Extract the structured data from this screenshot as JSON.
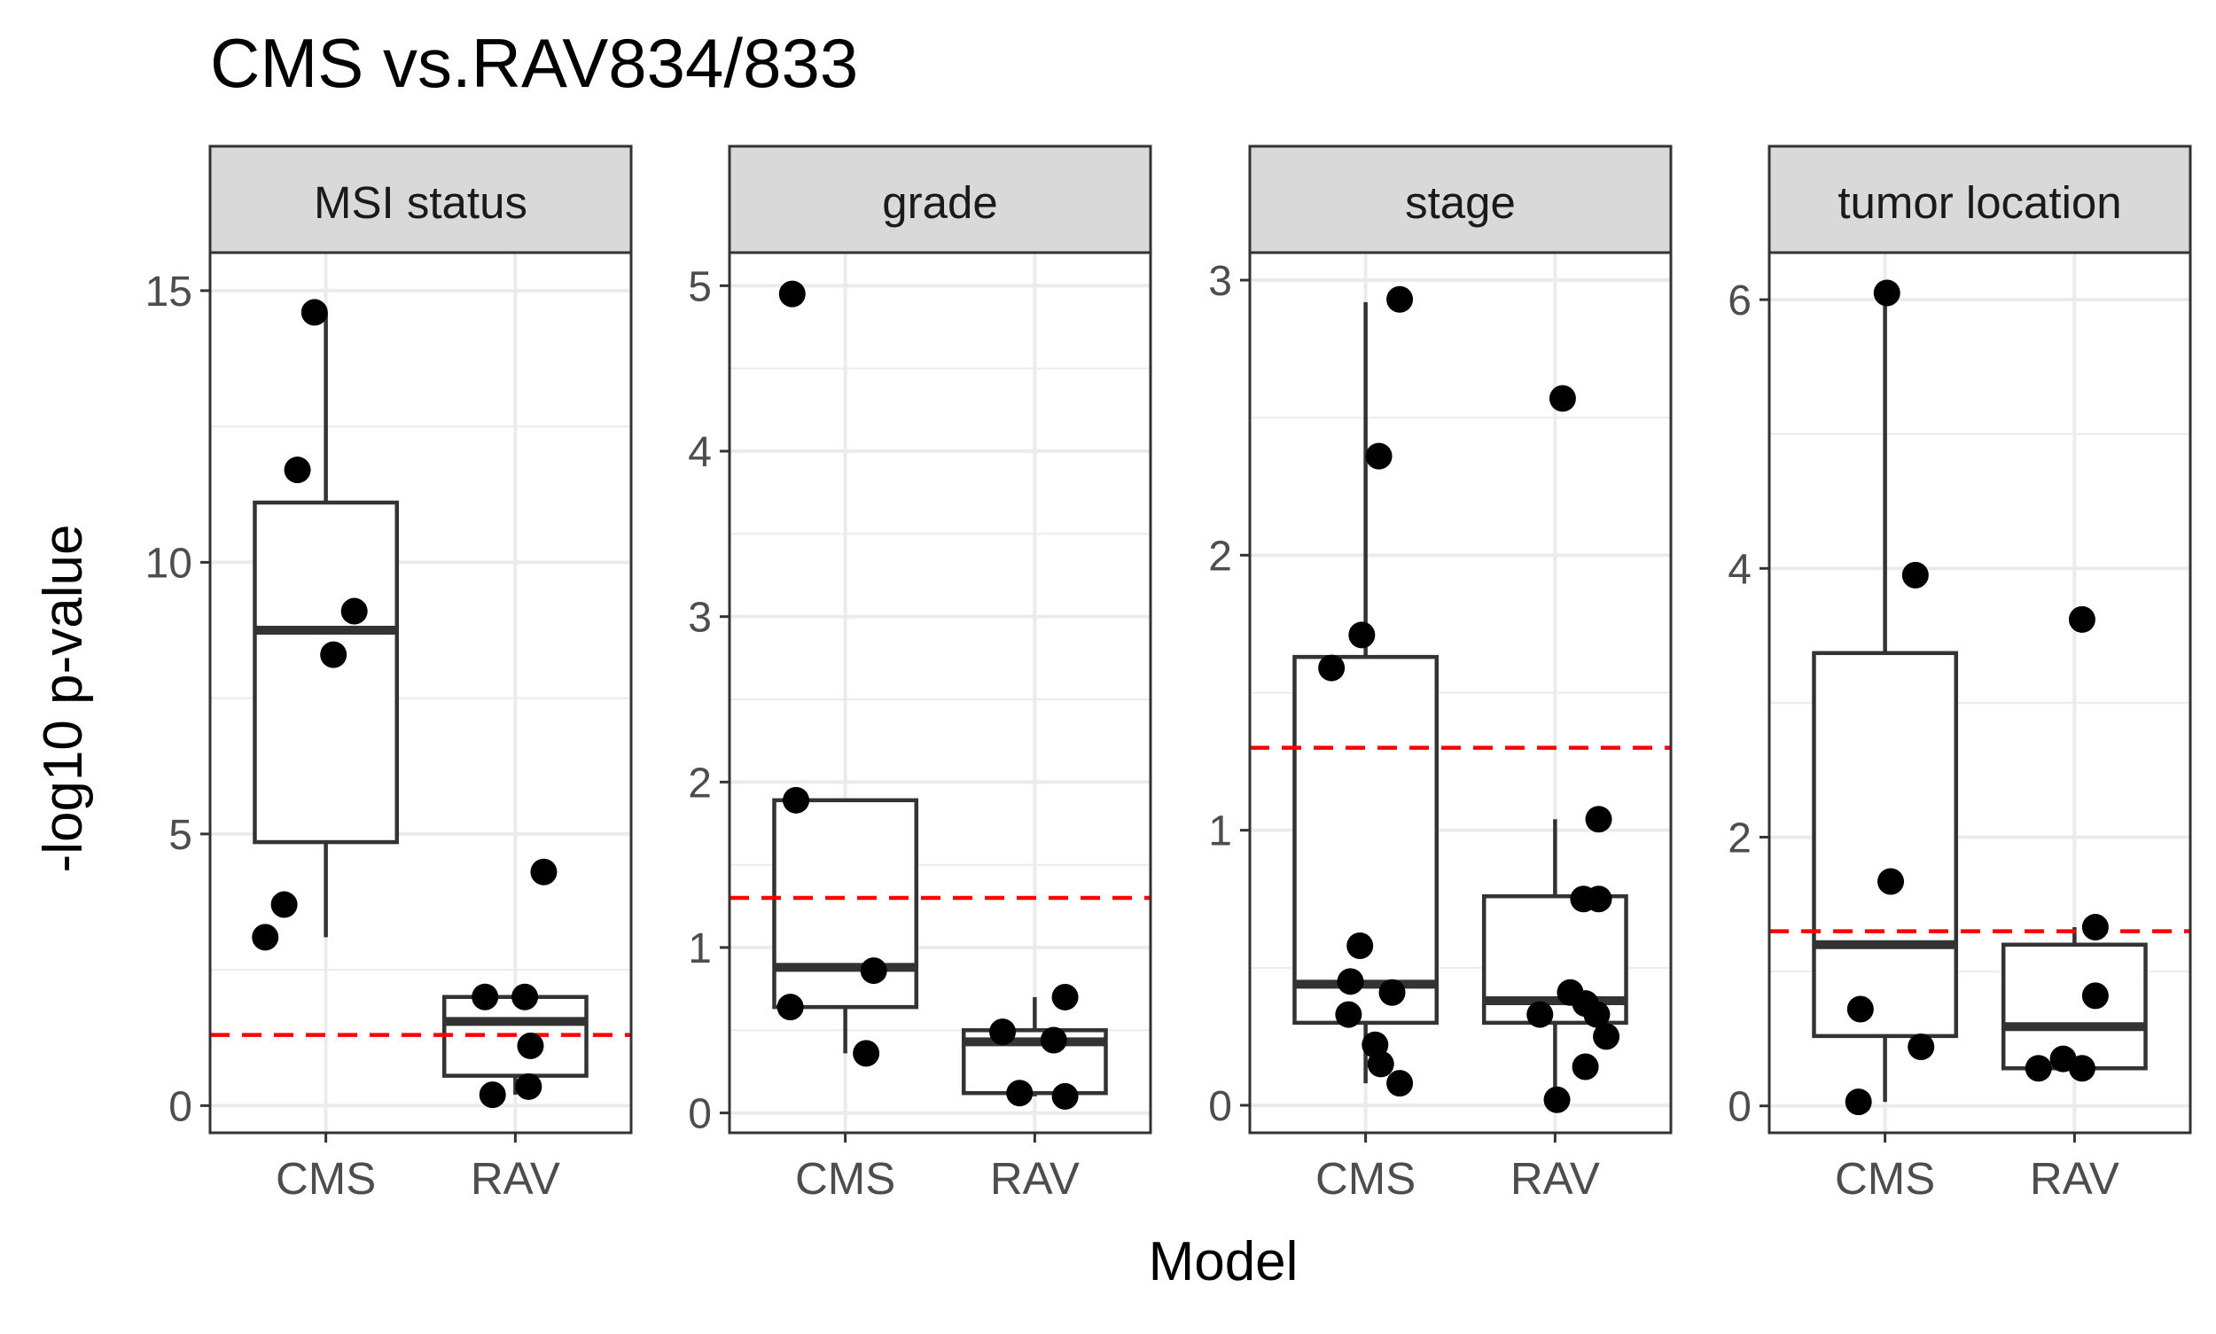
{
  "chart_data": {
    "type": "box",
    "title": "CMS vs.RAV834/833",
    "xlabel": "Model",
    "ylabel": "-log10 p-value",
    "categories": [
      "CMS",
      "RAV"
    ],
    "threshold": {
      "value": 1.3,
      "style": "dashed",
      "color": "#ff0000"
    },
    "grid": true,
    "colors": {
      "box": "#333333",
      "point": "#000000",
      "strip": "#d9d9d9",
      "grid": "#ebebeb"
    },
    "panels": [
      {
        "label": "MSI status",
        "ylim": [
          -0.5,
          15.7
        ],
        "yticks": [
          0,
          5,
          10,
          15
        ],
        "boxes": [
          {
            "category": "CMS",
            "whisker_low": 3.1,
            "q1": 4.85,
            "median": 8.75,
            "q3": 11.1,
            "whisker_high": 14.6
          },
          {
            "category": "RAV",
            "whisker_low": 0.2,
            "q1": 0.55,
            "median": 1.55,
            "q3": 2.0,
            "whisker_high": 2.0
          }
        ],
        "points": {
          "CMS": [
            [
              -0.15,
              11.7
            ],
            [
              0.04,
              8.3
            ],
            [
              -0.32,
              3.1
            ],
            [
              -0.22,
              3.7
            ],
            [
              0.15,
              9.1
            ],
            [
              -0.06,
              14.6
            ]
          ],
          "RAV": [
            [
              -0.16,
              2.0
            ],
            [
              0.05,
              2.0
            ],
            [
              0.15,
              4.3
            ],
            [
              -0.12,
              0.2
            ],
            [
              0.08,
              1.1
            ],
            [
              0.07,
              0.35
            ]
          ]
        }
      },
      {
        "label": "grade",
        "ylim": [
          -0.12,
          5.2
        ],
        "yticks": [
          0,
          1,
          2,
          3,
          4,
          5
        ],
        "boxes": [
          {
            "category": "CMS",
            "whisker_low": 0.36,
            "q1": 0.64,
            "median": 0.88,
            "q3": 1.89,
            "whisker_high": 1.89
          },
          {
            "category": "RAV",
            "whisker_low": 0.1,
            "q1": 0.12,
            "median": 0.43,
            "q3": 0.5,
            "whisker_high": 0.7
          }
        ],
        "points": {
          "CMS": [
            [
              -0.28,
              4.95
            ],
            [
              -0.26,
              1.89
            ],
            [
              0.15,
              0.86
            ],
            [
              -0.29,
              0.64
            ],
            [
              0.11,
              0.36
            ]
          ],
          "RAV": [
            [
              -0.17,
              0.49
            ],
            [
              0.1,
              0.44
            ],
            [
              0.16,
              0.7
            ],
            [
              -0.08,
              0.12
            ],
            [
              0.16,
              0.1
            ]
          ]
        }
      },
      {
        "label": "stage",
        "ylim": [
          -0.1,
          3.1
        ],
        "yticks": [
          0,
          1,
          2,
          3
        ],
        "boxes": [
          {
            "category": "CMS",
            "whisker_low": 0.08,
            "q1": 0.3,
            "median": 0.44,
            "q3": 1.63,
            "whisker_high": 2.92
          },
          {
            "category": "RAV",
            "whisker_low": 0.02,
            "q1": 0.3,
            "median": 0.38,
            "q3": 0.76,
            "whisker_high": 1.04
          }
        ],
        "points": {
          "CMS": [
            [
              0.18,
              2.93
            ],
            [
              0.07,
              2.36
            ],
            [
              -0.02,
              1.71
            ],
            [
              -0.18,
              1.59
            ],
            [
              -0.03,
              0.58
            ],
            [
              -0.08,
              0.45
            ],
            [
              0.14,
              0.41
            ],
            [
              -0.09,
              0.33
            ],
            [
              0.05,
              0.22
            ],
            [
              0.08,
              0.15
            ],
            [
              0.18,
              0.08
            ]
          ],
          "RAV": [
            [
              0.04,
              2.57
            ],
            [
              0.23,
              1.04
            ],
            [
              0.15,
              0.75
            ],
            [
              0.23,
              0.75
            ],
            [
              0.08,
              0.41
            ],
            [
              -0.08,
              0.33
            ],
            [
              0.16,
              0.37
            ],
            [
              0.22,
              0.33
            ],
            [
              0.27,
              0.25
            ],
            [
              0.16,
              0.14
            ],
            [
              0.01,
              0.02
            ]
          ]
        }
      },
      {
        "label": "tumor location",
        "ylim": [
          -0.2,
          6.35
        ],
        "yticks": [
          0,
          2,
          4,
          6
        ],
        "boxes": [
          {
            "category": "CMS",
            "whisker_low": 0.03,
            "q1": 0.52,
            "median": 1.2,
            "q3": 3.37,
            "whisker_high": 6.05
          },
          {
            "category": "RAV",
            "whisker_low": 0.28,
            "q1": 0.28,
            "median": 0.59,
            "q3": 1.2,
            "whisker_high": 1.33
          }
        ],
        "points": {
          "CMS": [
            [
              0.01,
              6.05
            ],
            [
              0.16,
              3.95
            ],
            [
              0.03,
              1.67
            ],
            [
              -0.13,
              0.72
            ],
            [
              0.19,
              0.44
            ],
            [
              -0.14,
              0.03
            ]
          ],
          "RAV": [
            [
              0.04,
              3.62
            ],
            [
              0.11,
              1.33
            ],
            [
              0.11,
              0.82
            ],
            [
              -0.06,
              0.35
            ],
            [
              -0.19,
              0.28
            ],
            [
              0.04,
              0.28
            ]
          ]
        }
      }
    ]
  }
}
